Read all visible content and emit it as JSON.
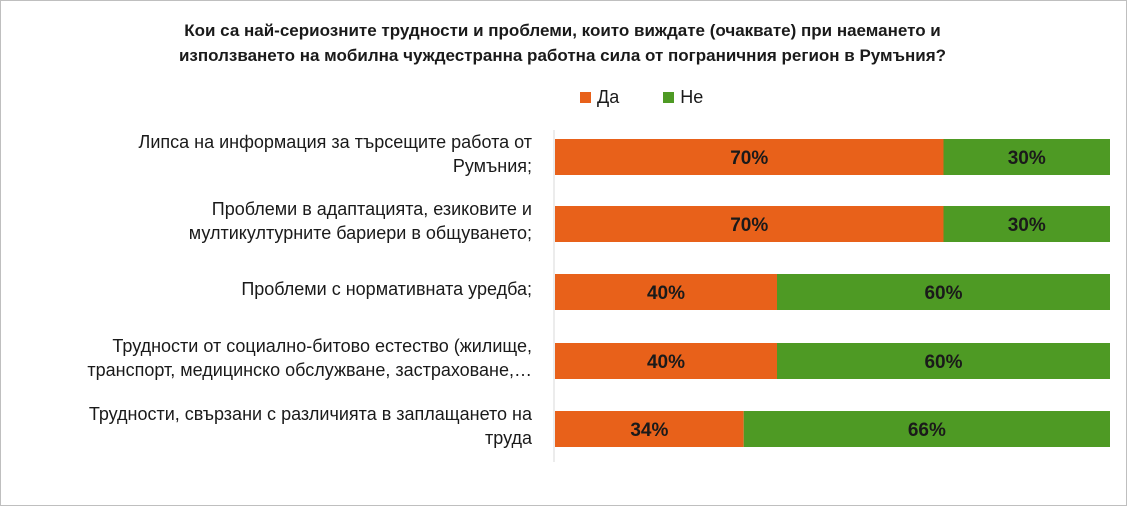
{
  "chart_data": {
    "type": "bar",
    "orientation": "horizontal",
    "stacked": true,
    "title_lines": [
      "Кои са най-сериозните трудности и проблеми, които виждате (очаквате) при наемането и",
      "използването на мобилна чуждестранна работна сила от пограничния регион в Румъния?"
    ],
    "categories": [
      {
        "lines": [
          "Липса на информация за търсещите работа от",
          "Румъния;"
        ]
      },
      {
        "lines": [
          "Проблеми в адаптацията, езиковите и",
          "мултикултурните бариери в общуването;"
        ]
      },
      {
        "lines": [
          "Проблеми с нормативната уредба;"
        ]
      },
      {
        "lines": [
          "Трудности от социално-битово естество (жилище,",
          "транспорт, медицинско обслужване, застраховане,…"
        ]
      },
      {
        "lines": [
          "Трудности, свързани с различията в заплащането на",
          "труда"
        ]
      }
    ],
    "series": [
      {
        "name": "Да",
        "color": "#e8611a",
        "values": [
          70,
          70,
          40,
          40,
          34
        ],
        "labels": [
          "70%",
          "70%",
          "40%",
          "40%",
          "34%"
        ]
      },
      {
        "name": "Не",
        "color": "#4e9a24",
        "values": [
          30,
          30,
          60,
          60,
          66
        ],
        "labels": [
          "30%",
          "30%",
          "60%",
          "60%",
          "66%"
        ]
      }
    ],
    "xlim": [
      0,
      100
    ],
    "legend_position": "top",
    "grid": false
  }
}
